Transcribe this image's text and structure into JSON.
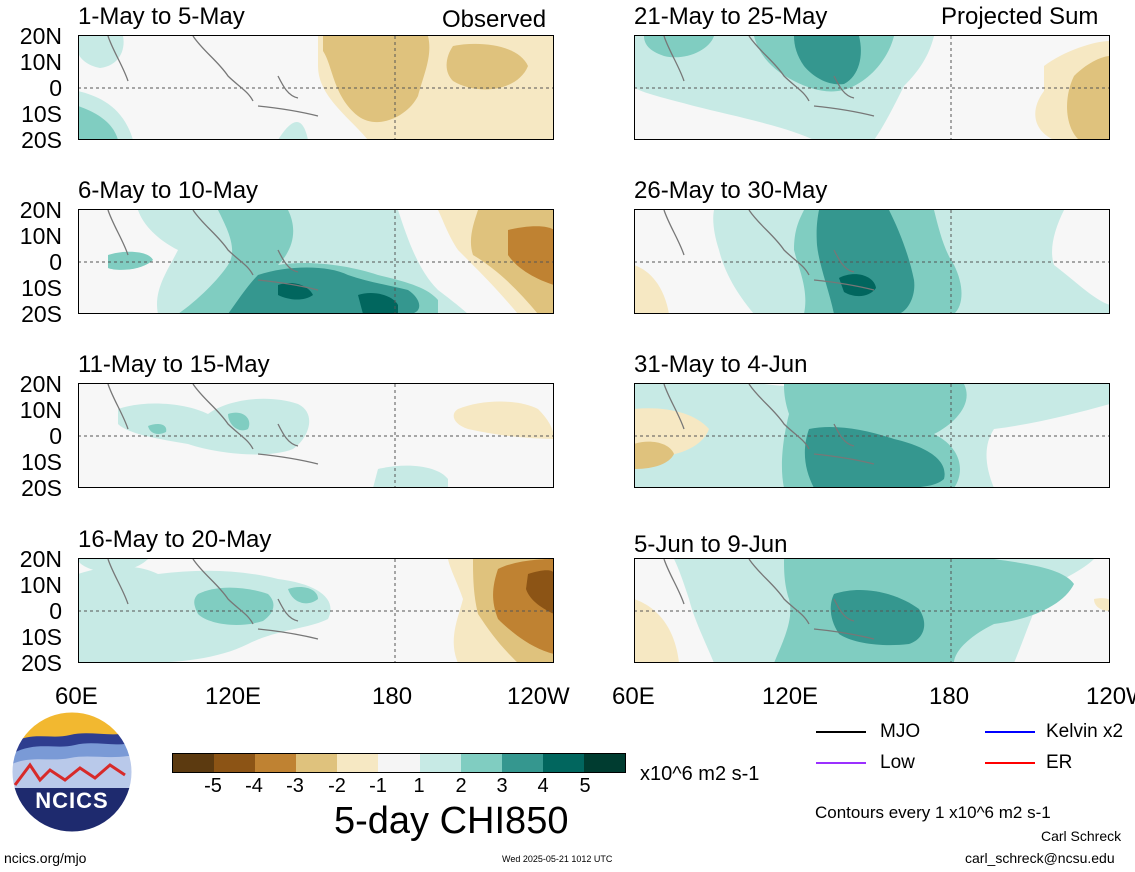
{
  "section_labels": {
    "left": "Observed",
    "right": "Projected Sum"
  },
  "y_labels": [
    "20N",
    "10N",
    "0",
    "10S",
    "20S"
  ],
  "x_labels": [
    "60E",
    "120E",
    "180",
    "120W"
  ],
  "panels_left": [
    {
      "title": "1-May to 5-May"
    },
    {
      "title": "6-May to 10-May"
    },
    {
      "title": "11-May to 15-May"
    },
    {
      "title": "16-May to 20-May"
    }
  ],
  "panels_right": [
    {
      "title": "21-May to 25-May"
    },
    {
      "title": "26-May to 30-May"
    },
    {
      "title": "31-May to 4-Jun"
    },
    {
      "title": "5-Jun to 9-Jun"
    }
  ],
  "colorbar": {
    "labels": [
      "-5",
      "-4",
      "-3",
      "-2",
      "-1",
      "1",
      "2",
      "3",
      "4",
      "5"
    ],
    "colors": [
      "#5c3a10",
      "#8c5415",
      "#bf8232",
      "#dfc27d",
      "#f6e8c3",
      "#f5f5f5",
      "#c7eae5",
      "#80cdc1",
      "#35978f",
      "#01665e",
      "#003c30"
    ],
    "units": "x10^6 m2 s-1",
    "title": "5-day CHI850"
  },
  "legend": [
    {
      "label": "MJO",
      "color": "#000000"
    },
    {
      "label": "Kelvin x2",
      "color": "#0000ff"
    },
    {
      "label": "Low",
      "color": "#9b30ff"
    },
    {
      "label": "ER",
      "color": "#ff0000"
    }
  ],
  "footer": {
    "contours_note": "Contours every 1 x10^6 m2 s-1",
    "author": "Carl Schreck",
    "email": "carl_schreck@ncsu.edu",
    "url": "ncics.org/mjo",
    "timestamp": "Wed 2025-05-21 1012 UTC",
    "logo_text": "NCICS"
  }
}
